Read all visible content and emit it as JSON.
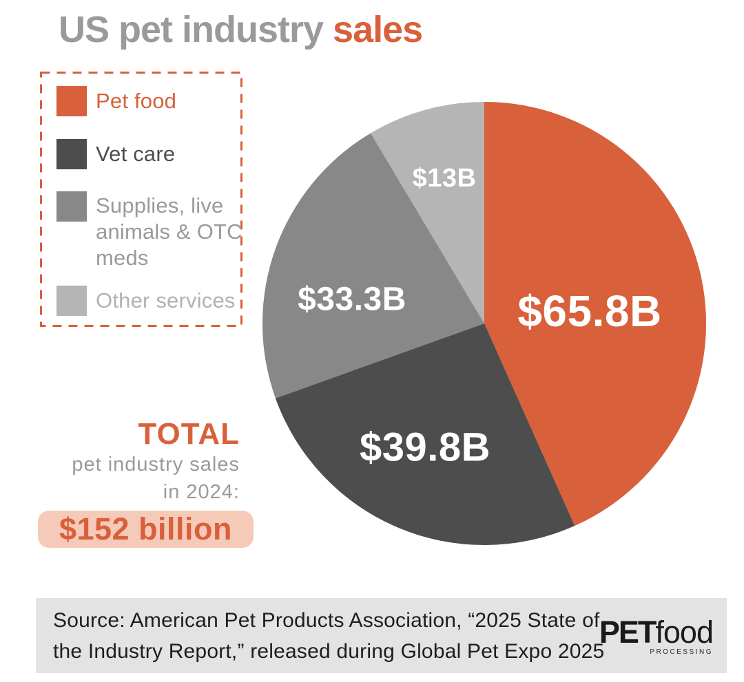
{
  "title": {
    "main": "US pet industry ",
    "accent": "sales"
  },
  "colors": {
    "accent_orange": "#d8603a",
    "dark_gray": "#4d4d4d",
    "mid_gray": "#888888",
    "light_gray": "#b5b5b5",
    "title_gray": "#9a9a9a",
    "highlight_peach": "#f6cab8",
    "footer_bg": "#e3e3e3",
    "slice_label_white": "#ffffff"
  },
  "legend": {
    "items": [
      {
        "label": "Pet food",
        "color": "#d8603a",
        "text_color": "#d8603a"
      },
      {
        "label": "Vet care",
        "color": "#4d4d4d",
        "text_color": "#4d4d4d"
      },
      {
        "label": "Supplies, live animals & OTC meds",
        "color": "#888888",
        "text_color": "#9a9a9a"
      },
      {
        "label": "Other services",
        "color": "#b5b5b5",
        "text_color": "#b2b2b2"
      }
    ]
  },
  "chart_data": {
    "type": "pie",
    "title": "US pet industry sales",
    "unit": "USD billions",
    "total_value": 152,
    "start_angle_deg": 0,
    "direction": "clockwise",
    "legend_position": "upper-left",
    "slices": [
      {
        "category": "Pet food",
        "value": 65.8,
        "label": "$65.8B",
        "color": "#d8603a"
      },
      {
        "category": "Vet care",
        "value": 39.8,
        "label": "$39.8B",
        "color": "#4d4d4d"
      },
      {
        "category": "Supplies, live animals & OTC meds",
        "value": 33.3,
        "label": "$33.3B",
        "color": "#888888"
      },
      {
        "category": "Other services",
        "value": 13,
        "label": "$13B",
        "color": "#b5b5b5"
      }
    ]
  },
  "total": {
    "heading": "TOTAL",
    "line1": "pet industry sales",
    "line2": "in 2024:",
    "value": "$152 billion"
  },
  "footer": {
    "source_lines": [
      "Source: American Pet Products Association, “2025 State of",
      "the Industry Report,” released during Global Pet Expo 2025"
    ],
    "logo": {
      "part1": "PET",
      "part2": "food",
      "part3": "PROCESSING"
    }
  }
}
